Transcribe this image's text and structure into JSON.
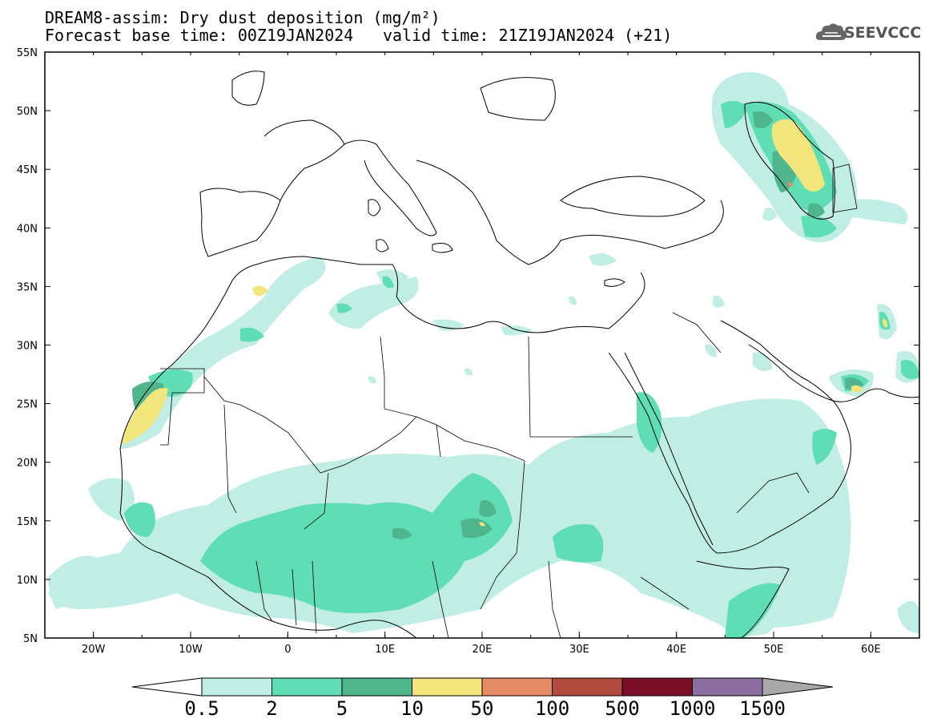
{
  "title": {
    "line1": "DREAM8-assim: Dry dust deposition (mg/m²)",
    "line2_left": "Forecast base time: 00Z19JAN2024",
    "line2_right": "valid time: 21Z19JAN2024 (+21)"
  },
  "logo": {
    "text": "SEEVCCC",
    "icon": "cloud-logo-icon"
  },
  "axes": {
    "lon_ticks": [
      "20W",
      "10W",
      "0",
      "10E",
      "20E",
      "30E",
      "40E",
      "50E",
      "60E"
    ],
    "lat_ticks": [
      "55N",
      "50N",
      "45N",
      "40N",
      "35N",
      "30N",
      "25N",
      "20N",
      "15N",
      "10N",
      "5N"
    ]
  },
  "colorbar": {
    "labels": [
      "0.5",
      "2",
      "5",
      "10",
      "50",
      "100",
      "500",
      "1000",
      "1500"
    ],
    "colors": [
      "#c0eee5",
      "#5fddb5",
      "#4fb58c",
      "#f2e57c",
      "#e58c66",
      "#b04a3e",
      "#7a0f2a",
      "#8c6ea0"
    ],
    "under_color": "#ffffff",
    "over_color": "#a8a8a8"
  }
}
